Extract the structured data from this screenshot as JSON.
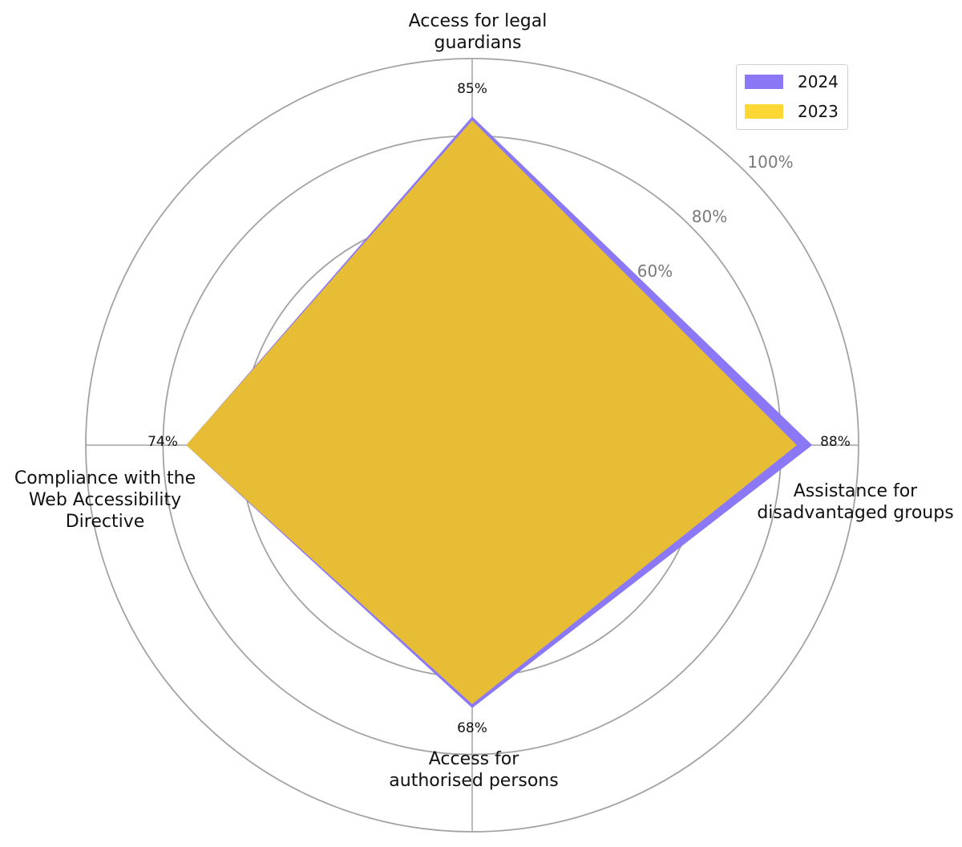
{
  "chart_data": {
    "type": "radar",
    "axes": [
      "Access for legal guardians",
      "Assistance for disadvantaged groups",
      "Access for authorised persons",
      "Compliance with the Web Accessibility Directive"
    ],
    "axis_label_lines": [
      [
        "Access for legal",
        "guardians"
      ],
      [
        "Assistance for",
        "disadvantaged groups"
      ],
      [
        "Access for",
        "authorised persons"
      ],
      [
        "Compliance with the",
        "Web Accessibility",
        "Directive"
      ]
    ],
    "series": [
      {
        "name": "2024",
        "color": "#8b78f7",
        "values": [
          85,
          88,
          68,
          74
        ]
      },
      {
        "name": "2023",
        "color": "#e6bd35",
        "values": [
          84,
          84,
          67,
          74
        ]
      }
    ],
    "value_labels": [
      "85%",
      "88%",
      "68%",
      "74%"
    ],
    "radial_ticks": [
      "60%",
      "80%",
      "100%"
    ],
    "tick_values": [
      40,
      60,
      80,
      100
    ],
    "rlim": [
      0,
      100
    ],
    "legend_position": "top-right",
    "grid": true
  }
}
